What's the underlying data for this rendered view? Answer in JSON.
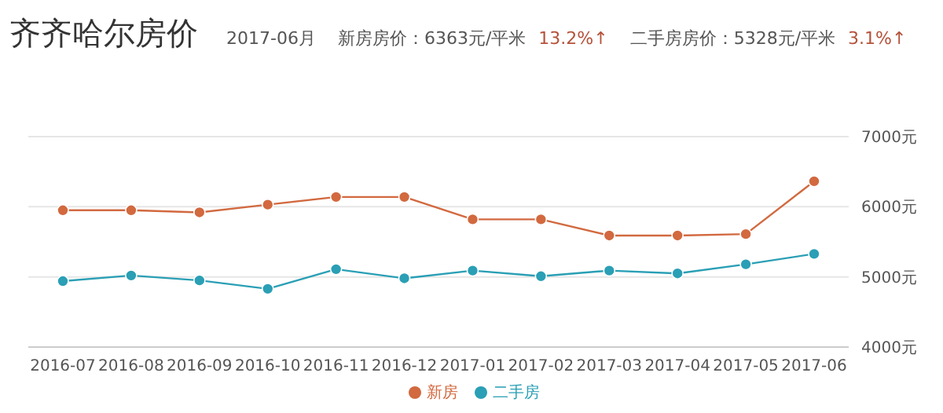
{
  "chart_data": {
    "type": "line",
    "title": "齐齐哈尔房价",
    "annotations": [
      "2017-06月",
      "新房房价：6363元/平米",
      "13.2%↑",
      "二手房房价：5328元/平米",
      "3.1%↑"
    ],
    "categories": [
      "2016-07",
      "2016-08",
      "2016-09",
      "2016-10",
      "2016-11",
      "2016-12",
      "2017-01",
      "2017-02",
      "2017-03",
      "2017-04",
      "2017-05",
      "2017-06"
    ],
    "series": [
      {
        "name": "新房",
        "color": "#d2693f",
        "values": [
          5950,
          5950,
          5920,
          6030,
          6140,
          6140,
          5820,
          5820,
          5590,
          5590,
          5610,
          6363
        ]
      },
      {
        "name": "二手房",
        "color": "#2a9fb5",
        "values": [
          4940,
          5020,
          4950,
          4830,
          5110,
          4980,
          5090,
          5010,
          5090,
          5050,
          5180,
          5328
        ]
      }
    ],
    "ylim": [
      4000,
      7000
    ],
    "yticks": [
      {
        "value": 4000,
        "label": "4000元"
      },
      {
        "value": 5000,
        "label": "5000元"
      },
      {
        "value": 6000,
        "label": "6000元"
      },
      {
        "value": 7000,
        "label": "7000元"
      }
    ],
    "grid": "y",
    "legend": "bottom",
    "marker": "circle",
    "line_style": "solid"
  }
}
